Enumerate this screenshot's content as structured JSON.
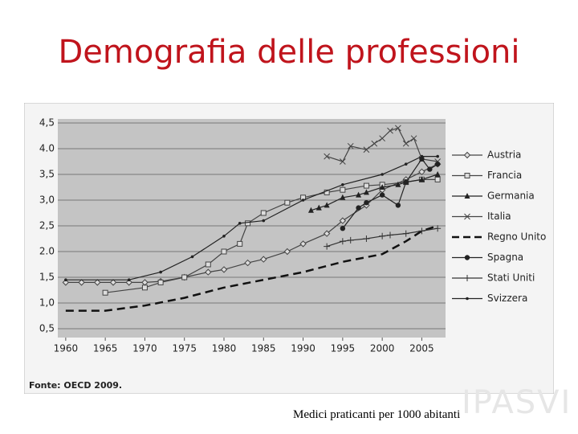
{
  "slide_title": "Demografia delle professioni",
  "chart_data": {
    "type": "line",
    "xlim": [
      1959,
      2008
    ],
    "xticks": [
      1960,
      1965,
      1970,
      1975,
      1980,
      1985,
      1990,
      1995,
      2000,
      2005
    ],
    "ylim": [
      0.5,
      4.5
    ],
    "yticks": [
      {
        "value": 0.5,
        "label": "0,5"
      },
      {
        "value": 1,
        "label": "1,0"
      },
      {
        "value": 1.5,
        "label": "1,5"
      },
      {
        "value": 2,
        "label": "2.0"
      },
      {
        "value": 2.5,
        "label": "2,5"
      },
      {
        "value": 3,
        "label": "3,0"
      },
      {
        "value": 3.5,
        "label": "3,5"
      },
      {
        "value": 4,
        "label": "4.0"
      },
      {
        "value": 4.5,
        "label": "4,5"
      }
    ],
    "grid": true,
    "legend": "right",
    "series": [
      {
        "name": "Austria",
        "color": "#444",
        "marker": "diamond",
        "x": [
          1960,
          1962,
          1964,
          1966,
          1968,
          1970,
          1972,
          1975,
          1978,
          1980,
          1983,
          1985,
          1988,
          1990,
          1993,
          1995,
          1998,
          2000,
          2003,
          2005,
          2007
        ],
        "values": [
          1.4,
          1.4,
          1.4,
          1.4,
          1.4,
          1.4,
          1.42,
          1.5,
          1.6,
          1.65,
          1.78,
          1.85,
          2.0,
          2.15,
          2.35,
          2.6,
          2.9,
          3.2,
          3.4,
          3.55,
          3.7
        ]
      },
      {
        "name": "Francia",
        "color": "#444",
        "marker": "square",
        "x": [
          1965,
          1970,
          1972,
          1975,
          1978,
          1980,
          1982,
          1983,
          1985,
          1988,
          1990,
          1993,
          1995,
          1998,
          2000,
          2003,
          2005,
          2007
        ],
        "values": [
          1.2,
          1.3,
          1.4,
          1.5,
          1.75,
          2.0,
          2.15,
          2.55,
          2.75,
          2.95,
          3.05,
          3.15,
          3.2,
          3.28,
          3.3,
          3.35,
          3.4,
          3.4
        ]
      },
      {
        "name": "Germania",
        "color": "#222",
        "marker": "triangle",
        "x": [
          1991,
          1992,
          1993,
          1995,
          1997,
          1998,
          2000,
          2002,
          2003,
          2005,
          2007
        ],
        "values": [
          2.8,
          2.85,
          2.9,
          3.05,
          3.1,
          3.15,
          3.25,
          3.3,
          3.35,
          3.4,
          3.5
        ]
      },
      {
        "name": "Italia",
        "color": "#444",
        "marker": "x",
        "x": [
          1993,
          1995,
          1996,
          1998,
          1999,
          2000,
          2001,
          2002,
          2003,
          2004,
          2005,
          2007
        ],
        "values": [
          3.85,
          3.75,
          4.05,
          3.98,
          4.1,
          4.2,
          4.35,
          4.4,
          4.1,
          4.2,
          3.8,
          3.75
        ]
      },
      {
        "name": "Regno Unito",
        "color": "#111",
        "marker": "dash",
        "x": [
          1960,
          1965,
          1970,
          1975,
          1980,
          1985,
          1990,
          1995,
          2000,
          2003,
          2005,
          2007
        ],
        "values": [
          0.85,
          0.85,
          0.95,
          1.1,
          1.3,
          1.45,
          1.6,
          1.8,
          1.95,
          2.2,
          2.4,
          2.5
        ]
      },
      {
        "name": "Spagna",
        "color": "#222",
        "marker": "circle",
        "x": [
          1995,
          1997,
          1998,
          2000,
          2002,
          2003,
          2005,
          2006,
          2007
        ],
        "values": [
          2.45,
          2.85,
          2.95,
          3.1,
          2.9,
          3.35,
          3.8,
          3.6,
          3.7
        ]
      },
      {
        "name": "Stati Uniti",
        "color": "#333",
        "marker": "plus",
        "x": [
          1993,
          1995,
          1996,
          1998,
          2000,
          2001,
          2003,
          2005,
          2007
        ],
        "values": [
          2.1,
          2.2,
          2.22,
          2.25,
          2.3,
          2.32,
          2.35,
          2.4,
          2.45
        ]
      },
      {
        "name": "Svizzera",
        "color": "#222",
        "marker": "dot",
        "x": [
          1960,
          1968,
          1972,
          1976,
          1980,
          1982,
          1985,
          1990,
          1995,
          2000,
          2003,
          2005,
          2007
        ],
        "values": [
          1.45,
          1.45,
          1.6,
          1.9,
          2.3,
          2.55,
          2.6,
          3.0,
          3.3,
          3.5,
          3.7,
          3.85,
          3.85
        ]
      }
    ]
  },
  "source": "Fonte: OECD 2009.",
  "caption": "Medici praticanti per 1000 abitanti",
  "logo": "IPASVI"
}
